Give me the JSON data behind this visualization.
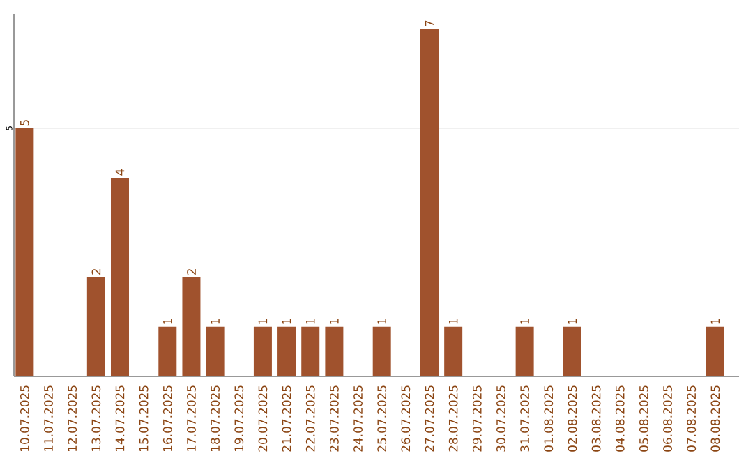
{
  "chart_data": {
    "type": "bar",
    "categories": [
      "10.07.2025",
      "11.07.2025",
      "12.07.2025",
      "13.07.2025",
      "14.07.2025",
      "15.07.2025",
      "16.07.2025",
      "17.07.2025",
      "18.07.2025",
      "19.07.2025",
      "20.07.2025",
      "21.07.2025",
      "22.07.2025",
      "23.07.2025",
      "24.07.2025",
      "25.07.2025",
      "26.07.2025",
      "27.07.2025",
      "28.07.2025",
      "29.07.2025",
      "30.07.2025",
      "31.07.2025",
      "01.08.2025",
      "02.08.2025",
      "03.08.2025",
      "04.08.2025",
      "05.08.2025",
      "06.08.2025",
      "07.08.2025",
      "08.08.2025"
    ],
    "values": [
      5,
      0,
      0,
      2,
      4,
      0,
      1,
      2,
      1,
      0,
      1,
      1,
      1,
      1,
      0,
      1,
      0,
      7,
      1,
      0,
      0,
      1,
      0,
      1,
      0,
      0,
      0,
      0,
      0,
      1
    ],
    "value_labels": [
      "5",
      null,
      null,
      "2",
      "4",
      null,
      "1",
      "2",
      "1",
      null,
      "1",
      "1",
      "1",
      "1",
      null,
      "1",
      null,
      "7",
      "1",
      null,
      null,
      "1",
      null,
      "1",
      null,
      null,
      null,
      null,
      null,
      "1"
    ],
    "color": "#a0522d",
    "ylim": [
      0,
      7.3
    ],
    "yticks": [
      5
    ],
    "grid": "y"
  }
}
